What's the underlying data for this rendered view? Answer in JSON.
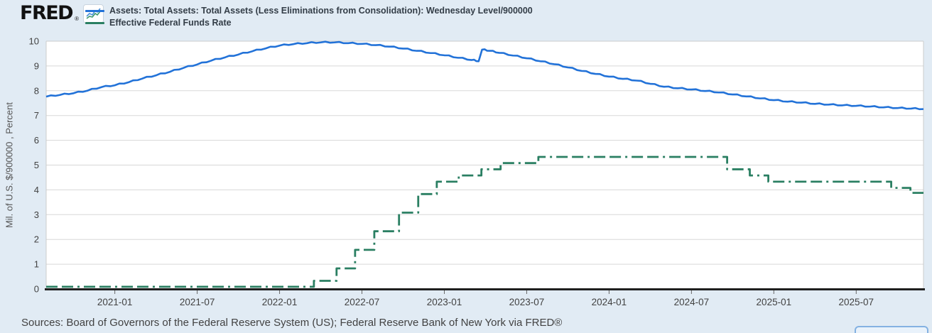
{
  "brand": {
    "logo_text": "FRED",
    "registered_mark": "®"
  },
  "legend": {
    "items": [
      {
        "label": "Assets: Total Assets: Total Assets (Less Eliminations from Consolidation): Wednesday Level/900000",
        "color": "#2272d8",
        "style": "solid"
      },
      {
        "label": "Effective Federal Funds Rate",
        "color": "#2a7f62",
        "style": "dash-dot"
      }
    ]
  },
  "sources": {
    "text": "Sources: Board of Governors of the Federal Reserve System (US); Federal Reserve Bank of New York via FRED®"
  },
  "colors": {
    "page_background": "#e1ebf4",
    "plot_background": "#ffffff",
    "gridline": "#d8d8d8",
    "plot_border": "#cccccc",
    "axis_line": "#1f1f1f",
    "tick_label": "#424242",
    "assets_line": "#2272d8",
    "effr_line": "#2a7f62"
  },
  "chart_data": {
    "type": "line",
    "title": "",
    "xlabel": "",
    "ylabel": "Mil. of U.S. $/900000 , Percent",
    "ylim": [
      0,
      10
    ],
    "y_ticks": [
      0,
      1,
      2,
      3,
      4,
      5,
      6,
      7,
      8,
      9,
      10
    ],
    "grid": "horizontal",
    "legend_position": "top-left",
    "x_epoch_month": "2020-08",
    "x_domain_months": [
      0,
      63.9
    ],
    "x_tick_labels": [
      "2021-01",
      "2021-07",
      "2022-01",
      "2022-07",
      "2023-01",
      "2023-07",
      "2024-01",
      "2024-07",
      "2025-01",
      "2025-07"
    ],
    "x_tick_months": [
      5,
      11,
      17,
      23,
      29,
      35,
      41,
      47,
      53,
      59
    ],
    "series": [
      {
        "name": "Assets: Total Assets: Total Assets (Less Eliminations from Consolidation): Wednesday Level/900000",
        "units": "Mil. of U.S. $/900000",
        "color": "#2272d8",
        "line_style": "solid",
        "step": false,
        "points": [
          [
            0,
            7.76
          ],
          [
            1,
            7.83
          ],
          [
            2,
            7.9
          ],
          [
            3,
            8.0
          ],
          [
            4,
            8.14
          ],
          [
            5,
            8.22
          ],
          [
            6,
            8.34
          ],
          [
            7,
            8.49
          ],
          [
            8,
            8.62
          ],
          [
            9,
            8.76
          ],
          [
            10,
            8.92
          ],
          [
            11,
            9.06
          ],
          [
            12,
            9.21
          ],
          [
            13,
            9.34
          ],
          [
            14,
            9.46
          ],
          [
            15,
            9.59
          ],
          [
            16,
            9.71
          ],
          [
            17,
            9.82
          ],
          [
            18,
            9.88
          ],
          [
            19,
            9.92
          ],
          [
            20,
            9.95
          ],
          [
            21,
            9.95
          ],
          [
            22,
            9.92
          ],
          [
            23,
            9.89
          ],
          [
            24,
            9.84
          ],
          [
            25,
            9.78
          ],
          [
            26,
            9.7
          ],
          [
            27,
            9.61
          ],
          [
            28,
            9.52
          ],
          [
            29,
            9.43
          ],
          [
            30,
            9.33
          ],
          [
            31,
            9.24
          ],
          [
            31.5,
            9.19
          ],
          [
            31.75,
            9.66
          ],
          [
            32.3,
            9.61
          ],
          [
            33,
            9.53
          ],
          [
            34,
            9.42
          ],
          [
            35,
            9.31
          ],
          [
            36,
            9.19
          ],
          [
            37,
            9.07
          ],
          [
            38,
            8.94
          ],
          [
            39,
            8.8
          ],
          [
            40,
            8.68
          ],
          [
            41,
            8.57
          ],
          [
            42,
            8.48
          ],
          [
            43,
            8.41
          ],
          [
            44,
            8.28
          ],
          [
            45,
            8.16
          ],
          [
            46,
            8.1
          ],
          [
            47,
            8.05
          ],
          [
            48,
            7.99
          ],
          [
            49,
            7.93
          ],
          [
            50,
            7.85
          ],
          [
            51,
            7.77
          ],
          [
            52,
            7.69
          ],
          [
            53,
            7.62
          ],
          [
            54,
            7.56
          ],
          [
            55,
            7.52
          ],
          [
            56,
            7.47
          ],
          [
            57,
            7.44
          ],
          [
            58,
            7.41
          ],
          [
            59,
            7.39
          ],
          [
            60,
            7.36
          ],
          [
            61,
            7.33
          ],
          [
            62,
            7.3
          ],
          [
            63,
            7.28
          ],
          [
            63.9,
            7.26
          ]
        ]
      },
      {
        "name": "Effective Federal Funds Rate",
        "units": "Percent",
        "color": "#2a7f62",
        "line_style": "dash-dot",
        "step": true,
        "points": [
          [
            0,
            0.09
          ],
          [
            19.5,
            0.33
          ],
          [
            21.15,
            0.83
          ],
          [
            22.5,
            1.58
          ],
          [
            23.9,
            2.33
          ],
          [
            25.7,
            3.08
          ],
          [
            27.1,
            3.83
          ],
          [
            28.45,
            4.33
          ],
          [
            30.05,
            4.58
          ],
          [
            31.7,
            4.83
          ],
          [
            33.1,
            5.08
          ],
          [
            35.85,
            5.33
          ],
          [
            49.6,
            4.83
          ],
          [
            51.25,
            4.58
          ],
          [
            52.6,
            4.33
          ],
          [
            61.55,
            4.08
          ],
          [
            62.95,
            3.88
          ]
        ]
      }
    ]
  }
}
